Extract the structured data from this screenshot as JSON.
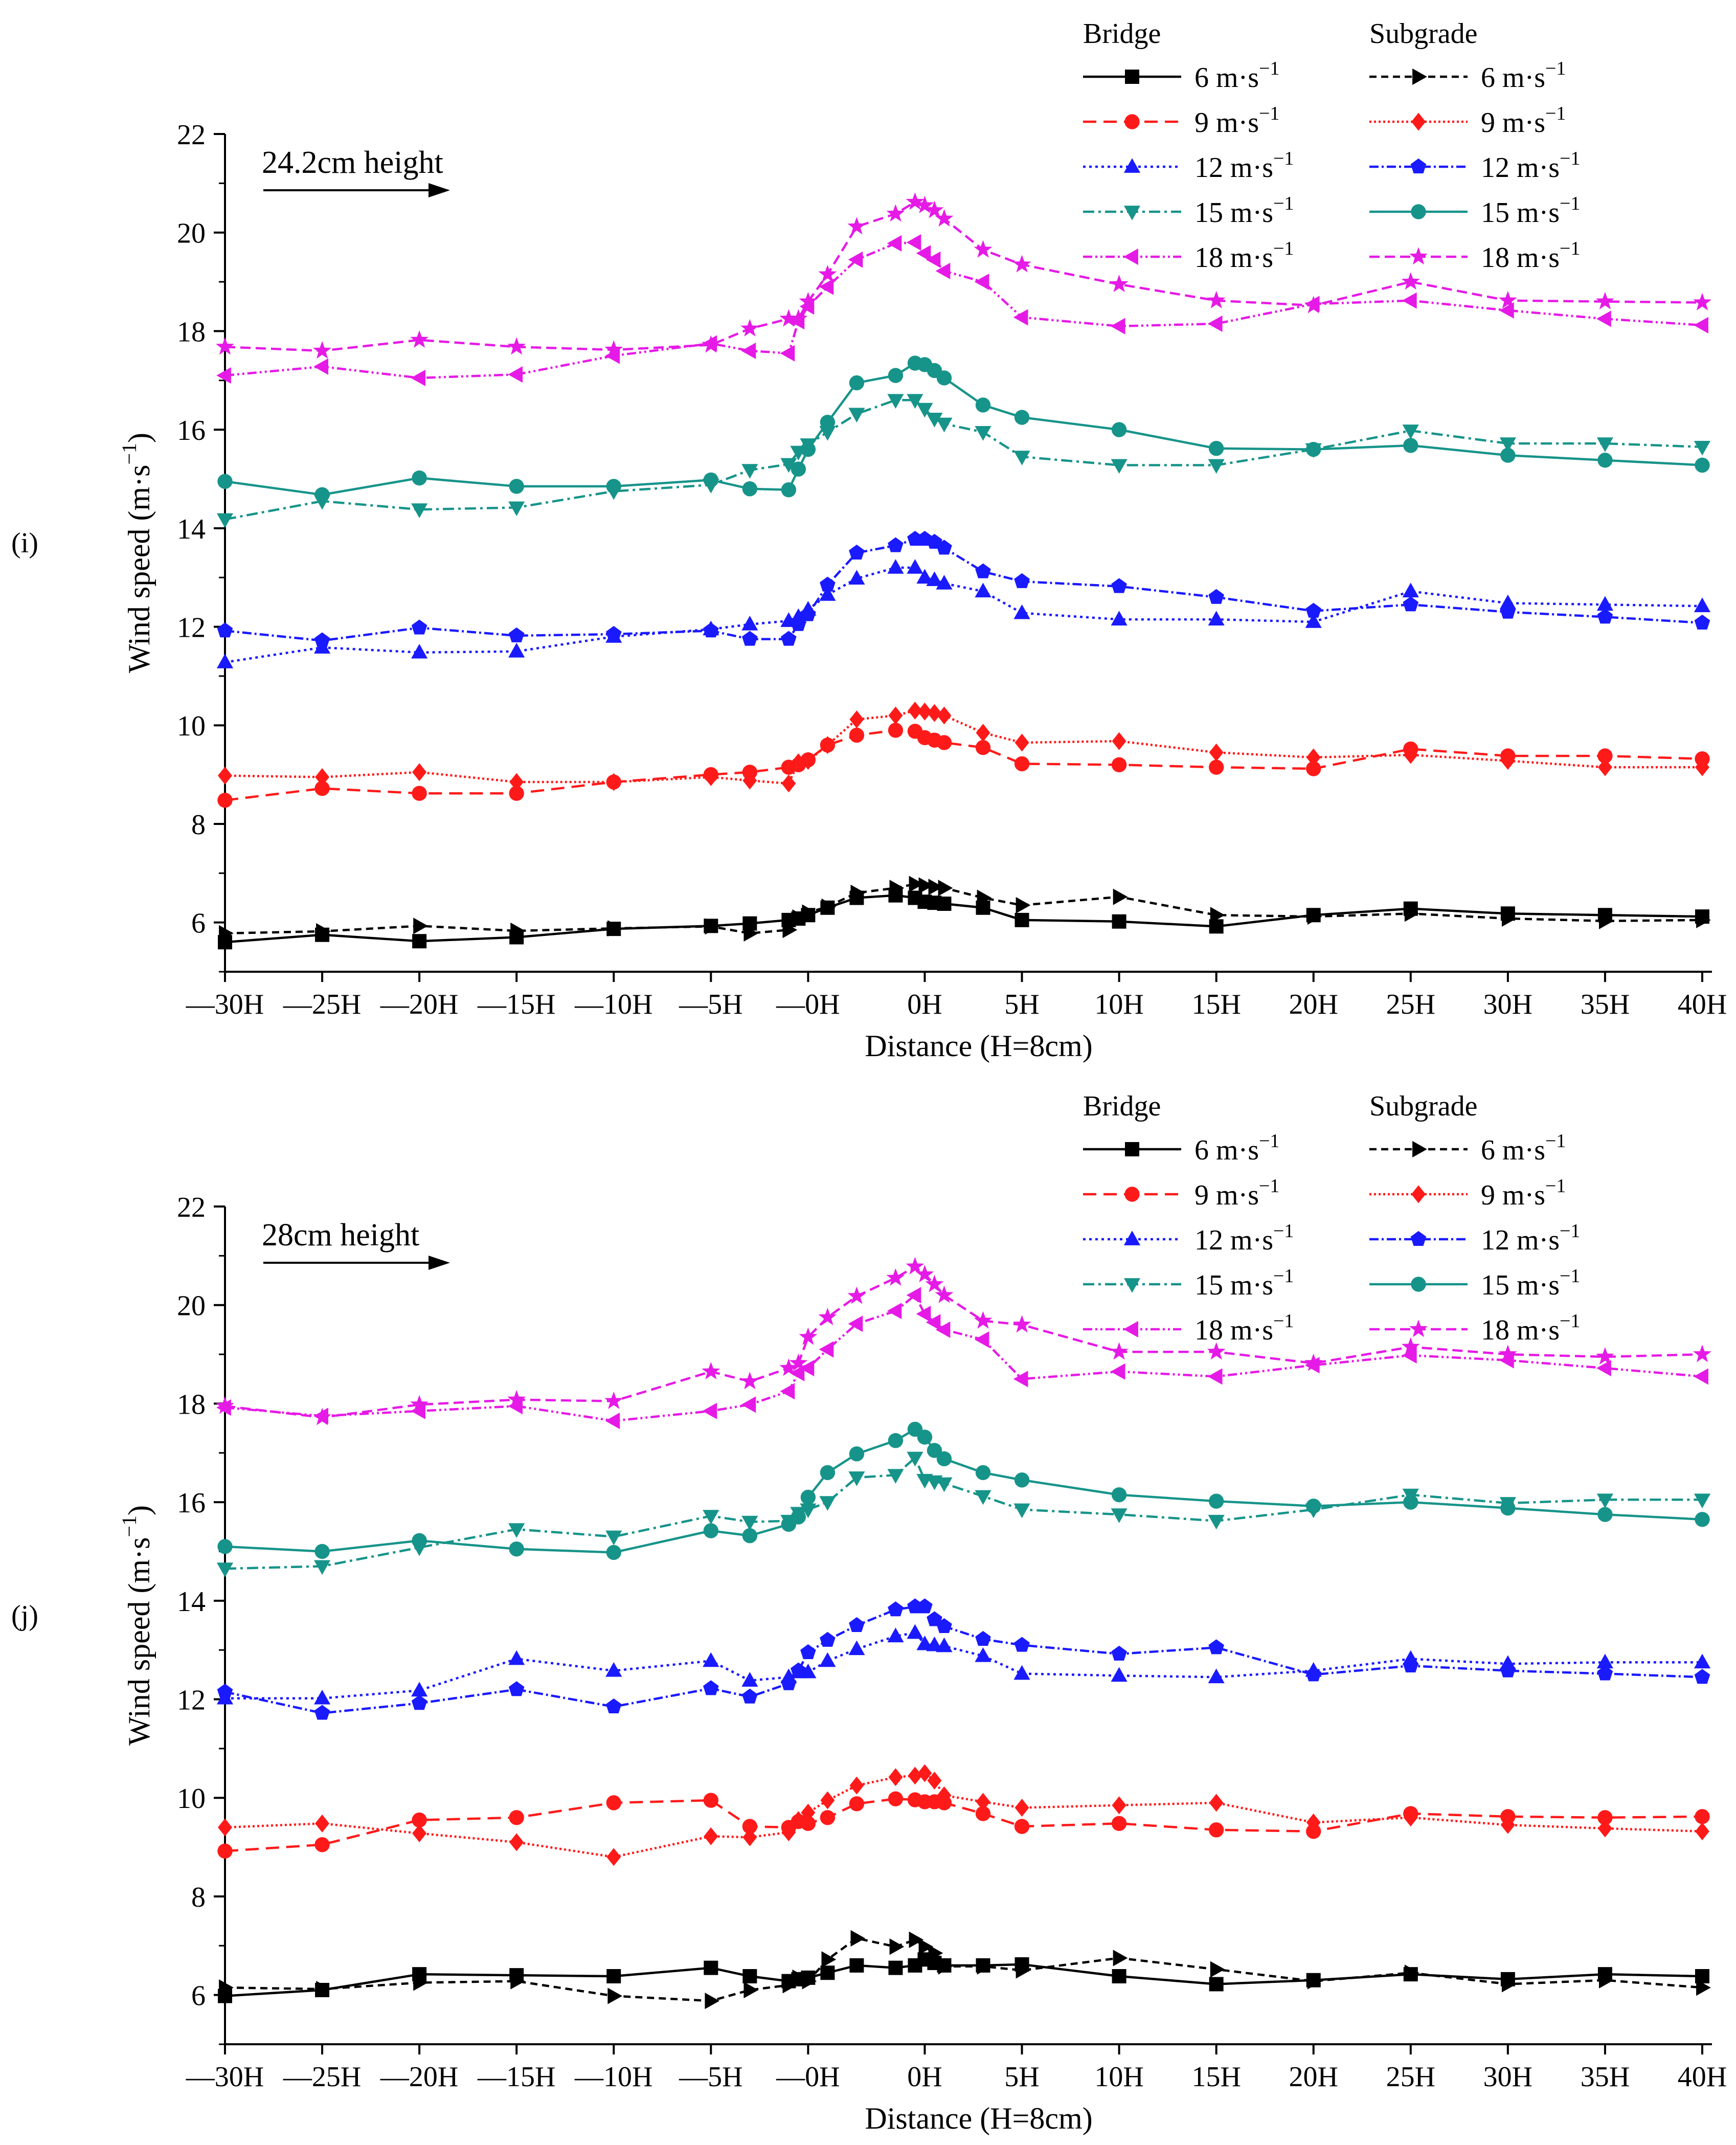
{
  "chart_data": [
    {
      "type": "line",
      "panel_label": "(i)",
      "annotation": "24.2cm height",
      "xlabel": "Distance (H=8cm)",
      "ylabel_main": "Wind speed (m·s",
      "ylabel_sup": "−1",
      "ylabel_close": ")",
      "ylim": [
        5,
        22
      ],
      "yticks": [
        6,
        8,
        10,
        12,
        14,
        16,
        18,
        20,
        22
      ],
      "xlim": [
        -30,
        40
      ],
      "xticks": [
        {
          "label": "—30H",
          "x": -30
        },
        {
          "label": "—25H",
          "x": -25
        },
        {
          "label": "—20H",
          "x": -20
        },
        {
          "label": "—15H",
          "x": -15
        },
        {
          "label": "—10H",
          "x": -10
        },
        {
          "label": "—5H",
          "x": -5
        },
        {
          "label": "—0H",
          "x": 0
        },
        {
          "label": "0H",
          "x": 6
        },
        {
          "label": "5H",
          "x": 11
        },
        {
          "label": "10H",
          "x": 16
        },
        {
          "label": "15H",
          "x": 21
        },
        {
          "label": "20H",
          "x": 26
        },
        {
          "label": "25H",
          "x": 31
        },
        {
          "label": "30H",
          "x": 36
        },
        {
          "label": "35H",
          "x": 41
        },
        {
          "label": "40H",
          "x": 46
        }
      ],
      "x": [
        -30,
        -25,
        -20,
        -15,
        -10,
        -5,
        -3,
        -1,
        -0.5,
        0,
        1,
        2.5,
        4.5,
        5.5,
        6,
        6.5,
        7,
        9,
        11,
        16,
        21,
        26,
        31,
        36,
        41,
        46
      ],
      "legend_headers": [
        "Bridge",
        "Subgrade"
      ],
      "series": [
        {
          "name": "6 m·s",
          "group": "Bridge",
          "color": "#000000",
          "dash": "",
          "marker": "square",
          "values": [
            5.6,
            5.75,
            5.62,
            5.7,
            5.87,
            5.93,
            5.98,
            6.05,
            6.08,
            6.15,
            6.3,
            6.5,
            6.55,
            6.5,
            6.42,
            6.4,
            6.38,
            6.3,
            6.05,
            6.02,
            5.92,
            6.15,
            6.28,
            6.18,
            6.15,
            6.12
          ]
        },
        {
          "name": "6 m·s",
          "group": "Subgrade",
          "color": "#000000",
          "dash": "14 9",
          "marker": "triangle-right",
          "values": [
            5.78,
            5.82,
            5.93,
            5.83,
            5.88,
            5.92,
            5.78,
            5.85,
            6.1,
            6.2,
            6.32,
            6.6,
            6.7,
            6.78,
            6.75,
            6.72,
            6.7,
            6.5,
            6.35,
            6.52,
            6.15,
            6.12,
            6.18,
            6.08,
            6.03,
            6.05
          ]
        },
        {
          "name": "9 m·s",
          "group": "Bridge",
          "color": "#ff1a1a",
          "dash": "26 14",
          "marker": "circle",
          "values": [
            8.48,
            8.72,
            8.62,
            8.62,
            8.85,
            9.0,
            9.05,
            9.15,
            9.2,
            9.3,
            9.6,
            9.8,
            9.9,
            9.88,
            9.75,
            9.7,
            9.65,
            9.55,
            9.22,
            9.2,
            9.15,
            9.12,
            9.52,
            9.38,
            9.38,
            9.32
          ]
        },
        {
          "name": "9 m·s",
          "group": "Subgrade",
          "color": "#ff1a1a",
          "dash": "4 5",
          "marker": "diamond",
          "values": [
            8.98,
            8.95,
            9.05,
            8.85,
            8.85,
            8.95,
            8.88,
            8.82,
            9.25,
            9.28,
            9.6,
            10.12,
            10.2,
            10.3,
            10.28,
            10.25,
            10.2,
            9.85,
            9.65,
            9.68,
            9.45,
            9.35,
            9.4,
            9.28,
            9.15,
            9.15
          ]
        },
        {
          "name": "12 m·s",
          "group": "Bridge",
          "color": "#1a1aff",
          "dash": "5 7",
          "marker": "triangle-up",
          "values": [
            11.28,
            11.58,
            11.48,
            11.5,
            11.8,
            11.95,
            12.05,
            12.12,
            12.2,
            12.35,
            12.65,
            12.98,
            13.2,
            13.2,
            13.0,
            12.95,
            12.88,
            12.72,
            12.28,
            12.15,
            12.15,
            12.1,
            12.72,
            12.48,
            12.45,
            12.42
          ]
        },
        {
          "name": "12 m·s",
          "group": "Subgrade",
          "color": "#1a1aff",
          "dash": "18 6 4 6",
          "marker": "pentagon",
          "values": [
            11.92,
            11.72,
            11.98,
            11.82,
            11.85,
            11.92,
            11.75,
            11.75,
            12.05,
            12.25,
            12.85,
            13.5,
            13.65,
            13.78,
            13.78,
            13.72,
            13.6,
            13.12,
            12.92,
            12.82,
            12.6,
            12.32,
            12.45,
            12.3,
            12.2,
            12.08
          ]
        },
        {
          "name": "15 m·s",
          "group": "Bridge",
          "color": "#17948a",
          "dash": "22 8 5 8",
          "marker": "triangle-down",
          "values": [
            14.18,
            14.55,
            14.38,
            14.42,
            14.75,
            14.88,
            15.18,
            15.3,
            15.55,
            15.7,
            15.95,
            16.32,
            16.6,
            16.6,
            16.42,
            16.22,
            16.12,
            15.95,
            15.45,
            15.28,
            15.28,
            15.6,
            15.98,
            15.72,
            15.72,
            15.65
          ]
        },
        {
          "name": "15 m·s",
          "group": "Subgrade",
          "color": "#17948a",
          "dash": "",
          "marker": "circle",
          "values": [
            14.95,
            14.68,
            15.02,
            14.85,
            14.85,
            14.98,
            14.8,
            14.78,
            15.2,
            15.6,
            16.15,
            16.95,
            17.1,
            17.35,
            17.32,
            17.2,
            17.05,
            16.5,
            16.25,
            16.0,
            15.62,
            15.6,
            15.68,
            15.48,
            15.38,
            15.28
          ]
        },
        {
          "name": "18 m·s",
          "group": "Bridge",
          "color": "#e61ae6",
          "dash": "18 6 4 6 4 6",
          "marker": "triangle-left",
          "values": [
            17.1,
            17.28,
            17.05,
            17.12,
            17.5,
            17.75,
            17.6,
            17.55,
            18.2,
            18.5,
            18.9,
            19.45,
            19.78,
            19.8,
            19.58,
            19.45,
            19.22,
            19.0,
            18.28,
            18.1,
            18.15,
            18.55,
            18.62,
            18.42,
            18.25,
            18.12
          ]
        },
        {
          "name": "18 m·s",
          "group": "Subgrade",
          "color": "#e61ae6",
          "dash": "20 10",
          "marker": "star",
          "values": [
            17.68,
            17.6,
            17.82,
            17.68,
            17.62,
            17.72,
            18.05,
            18.25,
            18.25,
            18.6,
            19.15,
            20.12,
            20.38,
            20.62,
            20.55,
            20.45,
            20.28,
            19.65,
            19.35,
            18.95,
            18.62,
            18.52,
            19.0,
            18.62,
            18.6,
            18.58
          ]
        }
      ]
    },
    {
      "type": "line",
      "panel_label": "(j)",
      "annotation": "28cm height",
      "xlabel": "Distance (H=8cm)",
      "ylabel_main": "Wind speed (m·s",
      "ylabel_sup": "−1",
      "ylabel_close": ")",
      "ylim": [
        5,
        22
      ],
      "yticks": [
        6,
        8,
        10,
        12,
        14,
        16,
        18,
        20,
        22
      ],
      "xlim": [
        -30,
        40
      ],
      "xticks": [
        {
          "label": "—30H",
          "x": -30
        },
        {
          "label": "—25H",
          "x": -25
        },
        {
          "label": "—20H",
          "x": -20
        },
        {
          "label": "—15H",
          "x": -15
        },
        {
          "label": "—10H",
          "x": -10
        },
        {
          "label": "—5H",
          "x": -5
        },
        {
          "label": "—0H",
          "x": 0
        },
        {
          "label": "0H",
          "x": 6
        },
        {
          "label": "5H",
          "x": 11
        },
        {
          "label": "10H",
          "x": 16
        },
        {
          "label": "15H",
          "x": 21
        },
        {
          "label": "20H",
          "x": 26
        },
        {
          "label": "25H",
          "x": 31
        },
        {
          "label": "30H",
          "x": 36
        },
        {
          "label": "35H",
          "x": 41
        },
        {
          "label": "40H",
          "x": 46
        }
      ],
      "x": [
        -30,
        -25,
        -20,
        -15,
        -10,
        -5,
        -3,
        -1,
        -0.5,
        0,
        1,
        2.5,
        4.5,
        5.5,
        6,
        6.5,
        7,
        9,
        11,
        16,
        21,
        26,
        31,
        36,
        41,
        46
      ],
      "legend_headers": [
        "Bridge",
        "Subgrade"
      ],
      "series": [
        {
          "name": "6 m·s",
          "group": "Bridge",
          "color": "#000000",
          "dash": "",
          "marker": "square",
          "values": [
            5.98,
            6.1,
            6.42,
            6.4,
            6.38,
            6.55,
            6.38,
            6.28,
            6.32,
            6.35,
            6.45,
            6.6,
            6.55,
            6.6,
            6.72,
            6.65,
            6.6,
            6.6,
            6.62,
            6.38,
            6.22,
            6.3,
            6.42,
            6.32,
            6.42,
            6.38
          ]
        },
        {
          "name": "6 m·s",
          "group": "Subgrade",
          "color": "#000000",
          "dash": "14 9",
          "marker": "triangle-right",
          "values": [
            6.15,
            6.12,
            6.25,
            6.28,
            5.98,
            5.88,
            6.1,
            6.2,
            6.35,
            6.28,
            6.72,
            7.15,
            6.98,
            7.12,
            6.98,
            6.85,
            6.58,
            6.58,
            6.5,
            6.75,
            6.52,
            6.28,
            6.45,
            6.22,
            6.3,
            6.15
          ]
        },
        {
          "name": "9 m·s",
          "group": "Bridge",
          "color": "#ff1a1a",
          "dash": "26 14",
          "marker": "circle",
          "values": [
            8.92,
            9.05,
            9.55,
            9.6,
            9.9,
            9.95,
            9.42,
            9.4,
            9.52,
            9.48,
            9.6,
            9.88,
            9.98,
            9.96,
            9.92,
            9.92,
            9.9,
            9.68,
            9.42,
            9.48,
            9.35,
            9.32,
            9.68,
            9.62,
            9.6,
            9.62
          ]
        },
        {
          "name": "9 m·s",
          "group": "Subgrade",
          "color": "#ff1a1a",
          "dash": "4 5",
          "marker": "diamond",
          "values": [
            9.4,
            9.48,
            9.28,
            9.1,
            8.8,
            9.22,
            9.2,
            9.3,
            9.55,
            9.7,
            9.95,
            10.25,
            10.42,
            10.45,
            10.5,
            10.35,
            10.05,
            9.92,
            9.8,
            9.85,
            9.9,
            9.5,
            9.6,
            9.45,
            9.38,
            9.32
          ]
        },
        {
          "name": "12 m·s",
          "group": "Bridge",
          "color": "#1a1aff",
          "dash": "5 7",
          "marker": "triangle-up",
          "values": [
            12.02,
            12.02,
            12.18,
            12.82,
            12.58,
            12.78,
            12.38,
            12.45,
            12.55,
            12.55,
            12.78,
            13.02,
            13.28,
            13.35,
            13.12,
            13.1,
            13.08,
            12.88,
            12.52,
            12.48,
            12.45,
            12.58,
            12.82,
            12.72,
            12.75,
            12.75
          ]
        },
        {
          "name": "12 m·s",
          "group": "Subgrade",
          "color": "#1a1aff",
          "dash": "18 6 4 6",
          "marker": "pentagon",
          "values": [
            12.15,
            11.72,
            11.92,
            12.2,
            11.85,
            12.22,
            12.05,
            12.32,
            12.58,
            12.95,
            13.2,
            13.5,
            13.82,
            13.88,
            13.88,
            13.62,
            13.48,
            13.22,
            13.1,
            12.92,
            13.05,
            12.5,
            12.68,
            12.58,
            12.52,
            12.45
          ]
        },
        {
          "name": "15 m·s",
          "group": "Bridge",
          "color": "#17948a",
          "dash": "22 8 5 8",
          "marker": "triangle-down",
          "values": [
            14.65,
            14.7,
            15.08,
            15.45,
            15.3,
            15.72,
            15.6,
            15.62,
            15.78,
            15.85,
            16.0,
            16.5,
            16.55,
            16.9,
            16.45,
            16.42,
            16.38,
            16.12,
            15.85,
            15.75,
            15.62,
            15.85,
            16.15,
            15.98,
            16.05,
            16.05
          ]
        },
        {
          "name": "15 m·s",
          "group": "Subgrade",
          "color": "#17948a",
          "dash": "",
          "marker": "circle",
          "values": [
            15.1,
            15.0,
            15.22,
            15.05,
            14.98,
            15.42,
            15.32,
            15.55,
            15.7,
            16.1,
            16.6,
            16.98,
            17.25,
            17.48,
            17.32,
            17.05,
            16.88,
            16.6,
            16.45,
            16.15,
            16.02,
            15.92,
            16.0,
            15.88,
            15.75,
            15.65
          ]
        },
        {
          "name": "18 m·s",
          "group": "Bridge",
          "color": "#e61ae6",
          "dash": "18 6 4 6 4 6",
          "marker": "triangle-left",
          "values": [
            17.92,
            17.75,
            17.85,
            17.95,
            17.65,
            17.85,
            17.98,
            18.25,
            18.62,
            18.72,
            19.1,
            19.62,
            19.88,
            20.2,
            19.82,
            19.65,
            19.5,
            19.3,
            18.5,
            18.65,
            18.55,
            18.78,
            18.98,
            18.88,
            18.72,
            18.55
          ]
        },
        {
          "name": "18 m·s",
          "group": "Subgrade",
          "color": "#e61ae6",
          "dash": "20 10",
          "marker": "star",
          "values": [
            17.95,
            17.72,
            17.98,
            18.08,
            18.05,
            18.65,
            18.45,
            18.72,
            18.82,
            19.35,
            19.75,
            20.18,
            20.55,
            20.78,
            20.62,
            20.42,
            20.2,
            19.68,
            19.6,
            19.05,
            19.05,
            18.82,
            19.15,
            19.0,
            18.95,
            19.0
          ]
        }
      ]
    }
  ]
}
